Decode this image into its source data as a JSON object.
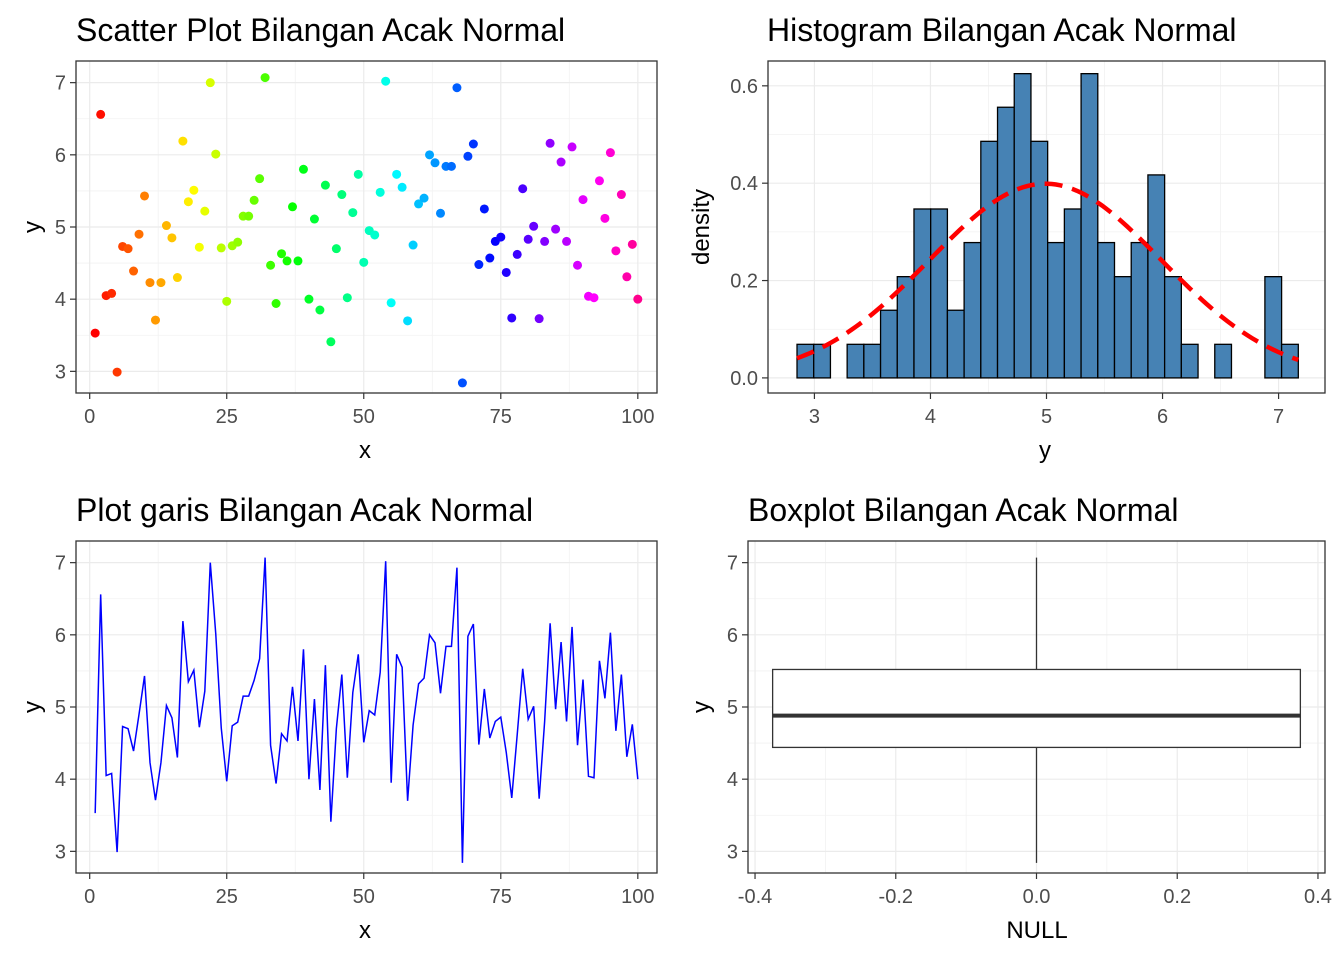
{
  "chart_data": [
    {
      "type": "scatter",
      "title": "Scatter Plot Bilangan Acak Normal",
      "xlabel": "x",
      "ylabel": "y",
      "xlim": [
        -2.5,
        103.5
      ],
      "ylim": [
        2.7,
        7.3
      ],
      "xticks": [
        0,
        25,
        50,
        75,
        100
      ],
      "yticks": [
        3,
        4,
        5,
        6,
        7
      ],
      "grid": true,
      "color_scale": "rainbow by x",
      "x": [
        1,
        2,
        3,
        4,
        5,
        6,
        7,
        8,
        9,
        10,
        11,
        12,
        13,
        14,
        15,
        16,
        17,
        18,
        19,
        20,
        21,
        22,
        23,
        24,
        25,
        26,
        27,
        28,
        29,
        30,
        31,
        32,
        33,
        34,
        35,
        36,
        37,
        38,
        39,
        40,
        41,
        42,
        43,
        44,
        45,
        46,
        47,
        48,
        49,
        50,
        51,
        52,
        53,
        54,
        55,
        56,
        57,
        58,
        59,
        60,
        61,
        62,
        63,
        64,
        65,
        66,
        67,
        68,
        69,
        70,
        71,
        72,
        73,
        74,
        75,
        76,
        77,
        78,
        79,
        80,
        81,
        82,
        83,
        84,
        85,
        86,
        87,
        88,
        89,
        90,
        91,
        92,
        93,
        94,
        95,
        96,
        97,
        98,
        99,
        100
      ],
      "y": [
        3.53,
        6.56,
        4.05,
        4.08,
        2.99,
        4.73,
        4.7,
        4.39,
        4.9,
        5.43,
        4.23,
        3.71,
        4.23,
        5.02,
        4.85,
        4.3,
        6.19,
        5.35,
        5.51,
        4.72,
        5.22,
        7.0,
        6.01,
        4.71,
        3.97,
        4.74,
        4.79,
        5.15,
        5.15,
        5.37,
        5.67,
        7.07,
        4.47,
        3.94,
        4.63,
        4.53,
        5.28,
        4.53,
        5.8,
        4.0,
        5.11,
        3.85,
        5.58,
        3.41,
        4.7,
        5.45,
        4.02,
        5.2,
        5.73,
        4.51,
        4.95,
        4.89,
        5.48,
        7.02,
        3.95,
        5.73,
        5.55,
        3.7,
        4.75,
        5.32,
        5.4,
        6.0,
        5.89,
        5.19,
        5.84,
        5.84,
        6.93,
        2.84,
        5.98,
        6.15,
        4.48,
        5.25,
        4.57,
        4.8,
        4.86,
        4.37,
        3.74,
        4.62,
        5.53,
        4.83,
        5.01,
        3.73,
        4.8,
        6.16,
        4.97,
        5.9,
        4.8,
        6.11,
        4.47,
        5.38,
        4.04,
        4.02,
        5.64,
        5.12,
        6.03,
        4.67,
        5.45,
        4.31,
        4.76,
        4.0
      ]
    },
    {
      "type": "bar",
      "subtype": "histogram",
      "title": "Histogram Bilangan Acak Normal",
      "xlabel": "y",
      "ylabel": "density",
      "xlim": [
        2.6,
        7.4
      ],
      "ylim": [
        -0.031,
        0.651
      ],
      "xticks": [
        3,
        4,
        5,
        6,
        7
      ],
      "yticks": [
        0.0,
        0.2,
        0.4,
        0.6
      ],
      "bin_width": 0.144,
      "bin_start": 2.85,
      "values": [
        0.069,
        0.069,
        0,
        0.069,
        0.069,
        0.139,
        0.208,
        0.347,
        0.347,
        0.139,
        0.278,
        0.486,
        0.556,
        0.625,
        0.486,
        0.278,
        0.347,
        0.625,
        0.278,
        0.208,
        0.278,
        0.417,
        0.208,
        0.069,
        0,
        0.069,
        0,
        0,
        0.208,
        0.069
      ],
      "fill_color": "#4682b4",
      "density_curve": {
        "mean": 4.99,
        "sd": 1.0,
        "color": "#ff0000",
        "style": "dashed"
      }
    },
    {
      "type": "line",
      "title": "Plot garis Bilangan Acak Normal",
      "xlabel": "x",
      "ylabel": "y",
      "xlim": [
        -2.5,
        103.5
      ],
      "ylim": [
        2.7,
        7.3
      ],
      "xticks": [
        0,
        25,
        50,
        75,
        100
      ],
      "yticks": [
        3,
        4,
        5,
        6,
        7
      ],
      "grid": true,
      "line_color": "#0000ff",
      "series_ref": "same x/y as scatter plot"
    },
    {
      "type": "boxplot",
      "title": "Boxplot Bilangan Acak Normal",
      "xlabel": "NULL",
      "ylabel": "y",
      "xlim": [
        -0.41,
        0.41
      ],
      "ylim": [
        2.7,
        7.3
      ],
      "xticks": [
        -0.4,
        -0.2,
        0.0,
        0.2,
        0.4
      ],
      "xtick_labels": [
        "-0.4",
        "-0.2",
        "0.0",
        "0.2",
        "0.4"
      ],
      "yticks": [
        3,
        4,
        5,
        6,
        7
      ],
      "box_halfwidth": 0.375,
      "min": 2.84,
      "q1": 4.44,
      "median": 4.88,
      "q3": 5.52,
      "max": 7.07
    }
  ]
}
